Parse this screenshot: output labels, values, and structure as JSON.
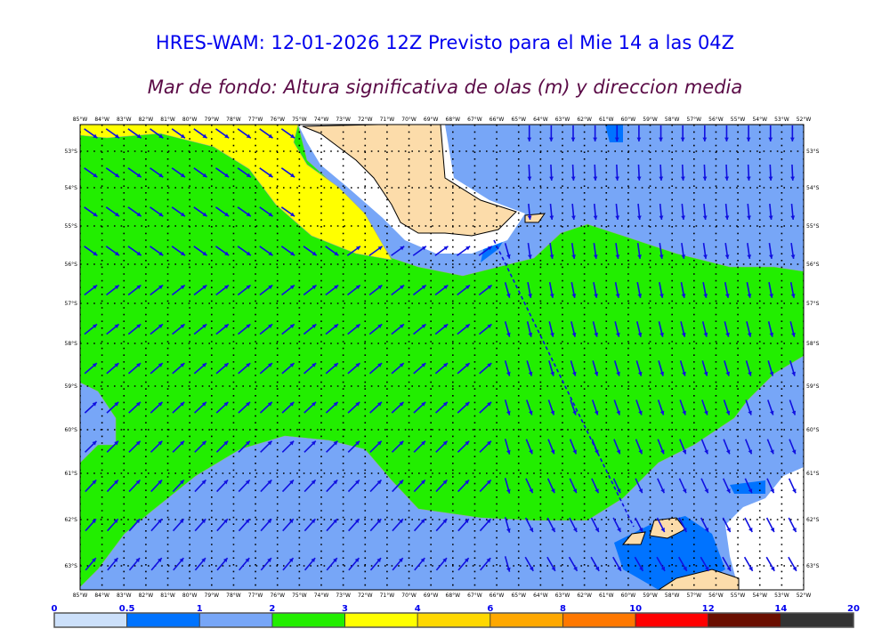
{
  "title": "HRES-WAM: 12-01-2026 12Z Previsto para el Mie 14 a las 04Z",
  "subtitle": "Mar de fondo: Altura significativa de olas (m) y direccion media",
  "map": {
    "longitudes": [
      "85°W",
      "84°W",
      "83°W",
      "82°W",
      "81°W",
      "80°W",
      "79°W",
      "78°W",
      "77°W",
      "76°W",
      "75°W",
      "74°W",
      "73°W",
      "72°W",
      "71°W",
      "70°W",
      "69°W",
      "68°W",
      "67°W",
      "66°W",
      "65°W",
      "64°W",
      "63°W",
      "62°W",
      "61°W",
      "60°W",
      "59°W",
      "58°W",
      "57°W",
      "56°W",
      "55°W",
      "54°W",
      "53°W",
      "52°W"
    ],
    "latitudes": [
      "53°S",
      "54°S",
      "55°S",
      "56°S",
      "57°S",
      "58°S",
      "59°S",
      "60°S",
      "61°S",
      "62°S",
      "63°S"
    ],
    "colors": {
      "sea_low": "#cce0fa",
      "blue": "#0073ff",
      "light_blue": "#77a6f7",
      "green": "#22ee00",
      "yellow": "#ffff00",
      "land": "#fcdcaa",
      "arrow": "#1010e0"
    }
  },
  "colorbar": {
    "labels": [
      "0",
      "0.5",
      "1",
      "2",
      "3",
      "4",
      "6",
      "8",
      "10",
      "12",
      "14",
      "20"
    ],
    "colors": [
      "#cce0fa",
      "#0073ff",
      "#77a6f7",
      "#22ee00",
      "#ffff00",
      "#ffd800",
      "#ffa800",
      "#ff7800",
      "#ff0000",
      "#6a0e00",
      "#333333"
    ]
  }
}
